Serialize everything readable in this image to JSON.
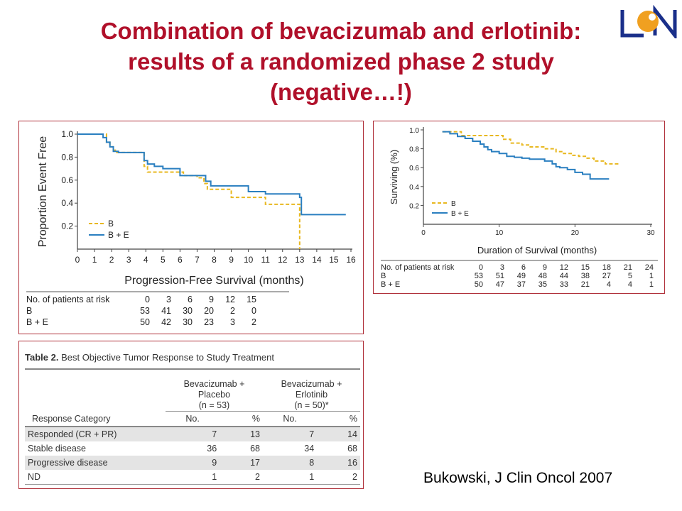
{
  "slide": {
    "title_line1": "Combination of bevacizumab and erlotinib:",
    "title_line2": "results of a randomized phase 2 study",
    "title_line3": "(negative…!)",
    "citation": "Bukowski, J Clin Oncol 2007"
  },
  "colors": {
    "title": "#b0102a",
    "series_B": "#e8b820",
    "series_BE": "#2a7fc0",
    "panel_border": "#b0303a"
  },
  "chart_data": [
    {
      "type": "line",
      "xlabel": "Progression-Free Survival (months)",
      "ylabel": "Proportion Event Free",
      "xlim": [
        0,
        16
      ],
      "ylim": [
        0,
        1.0
      ],
      "xticks": [
        0,
        1,
        2,
        3,
        4,
        5,
        6,
        7,
        8,
        9,
        10,
        11,
        12,
        13,
        14,
        15,
        16
      ],
      "yticks": [
        0.2,
        0.4,
        0.6,
        0.8,
        1.0
      ],
      "legend_position": "bottom-left",
      "series": [
        {
          "name": "B",
          "style": "dashed",
          "color": "#e8b820",
          "x": [
            0,
            1.5,
            1.7,
            1.9,
            2.1,
            2.3,
            2.5,
            3.7,
            3.9,
            4.1,
            5.0,
            6.2,
            7.0,
            7.4,
            7.6,
            8.0,
            9.0,
            11.0,
            13.0,
            13.0
          ],
          "y": [
            1.0,
            1.0,
            0.93,
            0.89,
            0.86,
            0.84,
            0.84,
            0.84,
            0.72,
            0.67,
            0.67,
            0.64,
            0.62,
            0.57,
            0.52,
            0.52,
            0.45,
            0.39,
            0.39,
            0.0
          ]
        },
        {
          "name": "B + E",
          "style": "solid",
          "color": "#2a7fc0",
          "x": [
            0,
            1.2,
            1.5,
            1.7,
            1.9,
            2.1,
            2.4,
            3.7,
            3.9,
            4.1,
            4.5,
            5.0,
            6.0,
            7.0,
            7.5,
            7.8,
            10.0,
            11.0,
            13.0,
            13.1,
            15.7
          ],
          "y": [
            1.0,
            1.0,
            0.97,
            0.93,
            0.89,
            0.85,
            0.84,
            0.84,
            0.77,
            0.74,
            0.72,
            0.7,
            0.64,
            0.64,
            0.59,
            0.55,
            0.5,
            0.48,
            0.45,
            0.3,
            0.3
          ]
        }
      ],
      "risk_table": {
        "label": "No. of patients at risk",
        "times": [
          "0",
          "3",
          "6",
          "9",
          "12",
          "15"
        ],
        "rows": [
          {
            "label": "B",
            "values": [
              "53",
              "41",
              "30",
              "20",
              "2",
              "0"
            ]
          },
          {
            "label": "B + E",
            "values": [
              "50",
              "42",
              "30",
              "23",
              "3",
              "2"
            ]
          }
        ]
      }
    },
    {
      "type": "line",
      "xlabel": "Duration of Survival (months)",
      "ylabel": "Surviving (%)",
      "xlim": [
        0,
        30
      ],
      "ylim": [
        0,
        1.0
      ],
      "xticks": [
        0,
        10,
        20,
        30
      ],
      "yticks": [
        0.2,
        0.4,
        0.6,
        0.8,
        1.0
      ],
      "legend_position": "bottom-left",
      "series": [
        {
          "name": "B",
          "style": "dashed",
          "color": "#e8b820",
          "x": [
            2.5,
            4.5,
            5,
            9,
            10.5,
            11.5,
            13,
            14,
            16,
            17.5,
            18.5,
            19.5,
            20.5,
            21.5,
            22.5,
            24,
            26
          ],
          "y": [
            0.98,
            0.98,
            0.94,
            0.94,
            0.9,
            0.86,
            0.84,
            0.82,
            0.8,
            0.77,
            0.75,
            0.73,
            0.72,
            0.7,
            0.67,
            0.64,
            0.64
          ]
        },
        {
          "name": "B + E",
          "style": "solid",
          "color": "#2a7fc0",
          "x": [
            2.5,
            3.5,
            4.5,
            5.5,
            6.5,
            7.5,
            8,
            8.5,
            9,
            10,
            11,
            12,
            13,
            14,
            16,
            17,
            17.5,
            18,
            19,
            20,
            21,
            22,
            24.5
          ],
          "y": [
            0.98,
            0.96,
            0.93,
            0.91,
            0.88,
            0.85,
            0.82,
            0.79,
            0.77,
            0.75,
            0.72,
            0.71,
            0.7,
            0.69,
            0.67,
            0.64,
            0.61,
            0.6,
            0.58,
            0.55,
            0.53,
            0.48,
            0.48
          ]
        }
      ],
      "risk_table": {
        "label": "No. of patients at risk",
        "times": [
          "0",
          "3",
          "6",
          "9",
          "12",
          "15",
          "18",
          "21",
          "24"
        ],
        "rows": [
          {
            "label": "B",
            "values": [
              "53",
              "51",
              "49",
              "48",
              "44",
              "38",
              "27",
              "5",
              "1"
            ]
          },
          {
            "label": "B + E",
            "values": [
              "50",
              "47",
              "37",
              "35",
              "33",
              "21",
              "4",
              "4",
              "1"
            ]
          }
        ]
      }
    },
    {
      "type": "table",
      "caption_bold": "Table 2.",
      "caption_rest": " Best Objective Tumor Response to Study Treatment",
      "group1": [
        "Bevacizumab +",
        "Placebo",
        "(n = 53)"
      ],
      "group2": [
        "Bevacizumab +",
        "Erlotinib",
        "(n = 50)*"
      ],
      "col_category": "Response Category",
      "col_no": "No.",
      "col_pct": "%",
      "rows": [
        {
          "category": "Responded (CR + PR)",
          "no1": "7",
          "pct1": "13",
          "no2": "7",
          "pct2": "14",
          "shaded": true
        },
        {
          "category": "Stable disease",
          "no1": "36",
          "pct1": "68",
          "no2": "34",
          "pct2": "68",
          "shaded": false
        },
        {
          "category": "Progressive disease",
          "no1": "9",
          "pct1": "17",
          "no2": "8",
          "pct2": "16",
          "shaded": true
        },
        {
          "category": "ND",
          "no1": "1",
          "pct1": "2",
          "no2": "1",
          "pct2": "2",
          "shaded": false
        }
      ]
    }
  ]
}
